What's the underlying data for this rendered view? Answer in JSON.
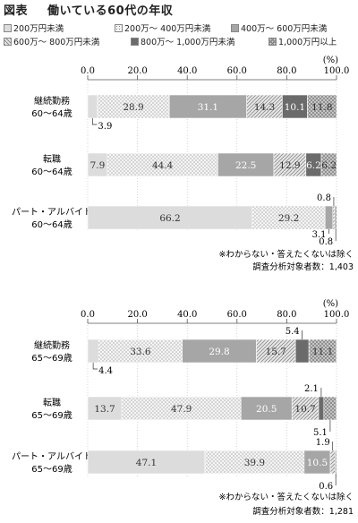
{
  "title": {
    "prefix": "図表",
    "text": "働いている60代の年収"
  },
  "legend": [
    {
      "label": "200万円未満",
      "color": "#dcdcdc",
      "pattern": "solid"
    },
    {
      "label": "200万～ 400万円未満",
      "color": "#f2f2f2",
      "pattern": "dots"
    },
    {
      "label": "400万～ 600万円未満",
      "color": "#a6a6a6",
      "pattern": "solid"
    },
    {
      "label": "600万～ 800万円未満",
      "color": "#e6e6e6",
      "pattern": "diagonal"
    },
    {
      "label": "800万～ 1,000万円未満",
      "color": "#6b6b6b",
      "pattern": "solid"
    },
    {
      "label": "1,000万円以上",
      "color": "#cfcfcf",
      "pattern": "crosshatch"
    }
  ],
  "chart_data": [
    {
      "type": "bar",
      "orientation": "horizontal-stacked",
      "unit": "(%)",
      "xlim": [
        0,
        100
      ],
      "ticks": [
        "0.0",
        "20.0",
        "40.0",
        "60.0",
        "80.0",
        "100.0"
      ],
      "grid": true,
      "categories": [
        "継続勤務\n60～64歳",
        "転職\n60～64歳",
        "パート・アルバイト\n60～64歳"
      ],
      "rows": [
        {
          "line1": "継続勤務",
          "line2": "60～64歳",
          "values": [
            3.9,
            28.9,
            31.1,
            14.3,
            10.1,
            11.8
          ],
          "labels": [
            "3.9",
            "28.9",
            "31.1",
            "14.3",
            "10.1",
            "11.8"
          ]
        },
        {
          "line1": "転職",
          "line2": "60～64歳",
          "values": [
            7.9,
            44.4,
            22.5,
            12.9,
            6.2,
            6.2
          ],
          "labels": [
            "7.9",
            "44.4",
            "22.5",
            "12.9",
            "6.2",
            "6.2"
          ]
        },
        {
          "line1": "パート・アルバイト",
          "line2": "60～64歳",
          "values": [
            66.2,
            29.2,
            3.1,
            0.8,
            0.0,
            0.8
          ],
          "labels": [
            "66.2",
            "29.2",
            "3.1",
            "0.8",
            "",
            "0.8"
          ]
        }
      ],
      "notes": [
        "※わからない・答えたくないは除く",
        "調査分析対象者数：1,403"
      ]
    },
    {
      "type": "bar",
      "orientation": "horizontal-stacked",
      "unit": "(%)",
      "xlim": [
        0,
        100
      ],
      "ticks": [
        "0.0",
        "20.0",
        "40.0",
        "60.0",
        "80.0",
        "100.0"
      ],
      "grid": true,
      "categories": [
        "継続勤務\n65～69歳",
        "転職\n65～69歳",
        "パート・アルバイト\n65～69歳"
      ],
      "rows": [
        {
          "line1": "継続勤務",
          "line2": "65～69歳",
          "values": [
            4.4,
            33.6,
            29.8,
            15.7,
            5.4,
            11.1
          ],
          "labels": [
            "4.4",
            "33.6",
            "29.8",
            "15.7",
            "5.4",
            "11.1"
          ]
        },
        {
          "line1": "転職",
          "line2": "65～69歳",
          "values": [
            13.7,
            47.9,
            20.5,
            10.7,
            2.1,
            5.1
          ],
          "labels": [
            "13.7",
            "47.9",
            "20.5",
            "10.7",
            "2.1",
            "5.1"
          ]
        },
        {
          "line1": "パート・アルバイト",
          "line2": "65～69歳",
          "values": [
            47.1,
            39.9,
            10.5,
            1.9,
            0.0,
            0.6
          ],
          "labels": [
            "47.1",
            "39.9",
            "10.5",
            "1.9",
            "",
            "0.6"
          ]
        }
      ],
      "notes": [
        "※わからない・答えたくないは除く",
        "調査分析対象者数：1,281"
      ]
    }
  ]
}
